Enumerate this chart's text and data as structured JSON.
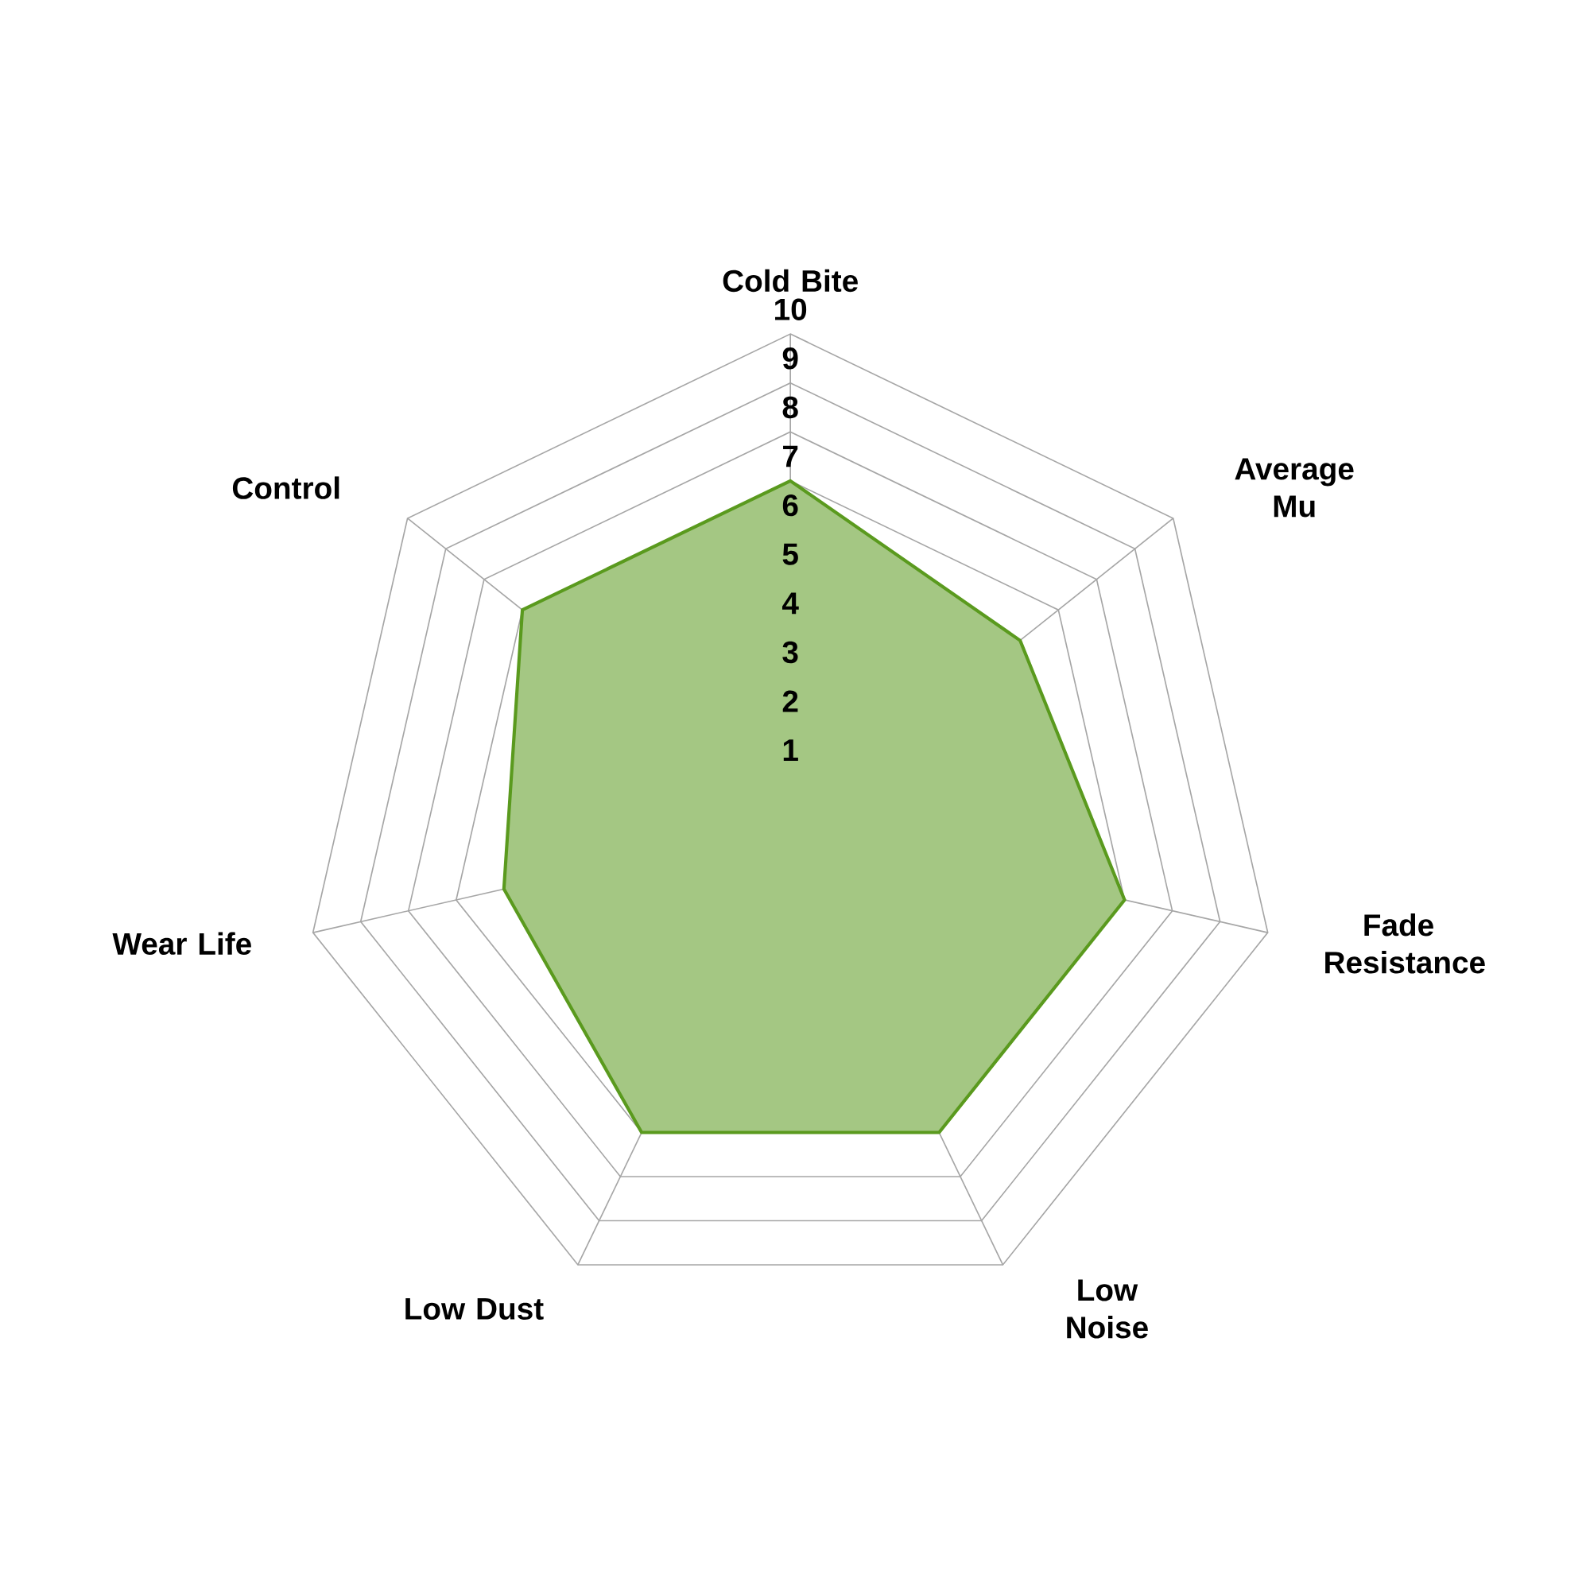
{
  "chart_data": {
    "type": "radar",
    "categories": [
      "Cold Bite",
      "Average Mu",
      "Fade Resistance",
      "Low Noise",
      "Low Dust",
      "Wear Life",
      "Control"
    ],
    "series": [
      {
        "color": "#5a9a1e",
        "values": [
          7,
          6,
          7,
          7,
          7,
          6,
          7
        ]
      }
    ],
    "ylim": [
      0,
      10
    ],
    "yticks": [
      1,
      2,
      3,
      4,
      5,
      6,
      7,
      8,
      9,
      10
    ],
    "grid": true
  }
}
